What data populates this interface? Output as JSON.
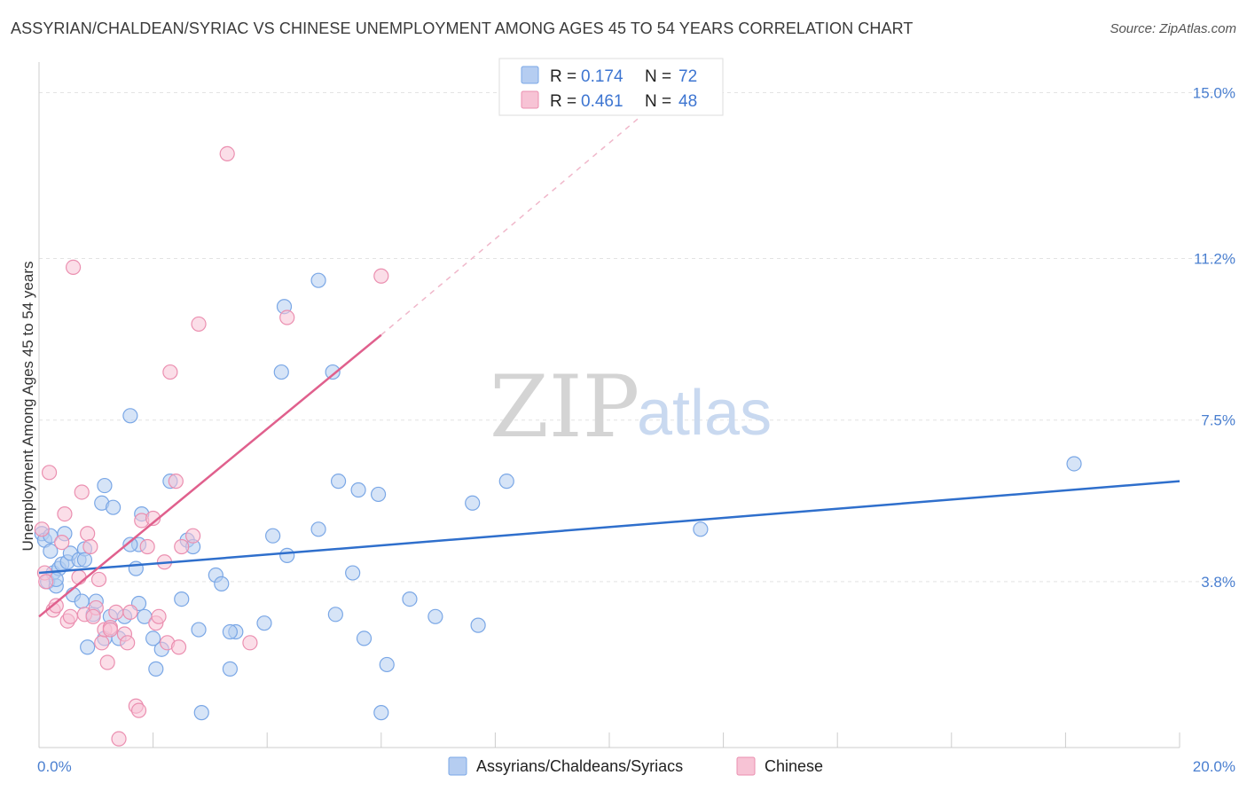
{
  "header": {
    "title": "ASSYRIAN/CHALDEAN/SYRIAC VS CHINESE UNEMPLOYMENT AMONG AGES 45 TO 54 YEARS CORRELATION CHART",
    "source": "Source: ZipAtlas.com"
  },
  "watermark": {
    "zip": "ZIP",
    "atlas": "atlas"
  },
  "legend": {
    "r_label": "R =",
    "n_label": "N =",
    "series": [
      {
        "r": "0.174",
        "n": "72"
      },
      {
        "r": "0.461",
        "n": "48"
      }
    ]
  },
  "chart_data": {
    "type": "scatter",
    "title": "ASSYRIAN/CHALDEAN/SYRIAC VS CHINESE UNEMPLOYMENT AMONG AGES 45 TO 54 YEARS CORRELATION CHART",
    "xlabel": "",
    "ylabel": "Unemployment Among Ages 45 to 54 years",
    "xlim": [
      0,
      20
    ],
    "ylim": [
      0,
      15.7
    ],
    "x_tick_labels": [
      "0.0%",
      "20.0%"
    ],
    "y_ticks": [
      3.8,
      7.5,
      11.2,
      15.0
    ],
    "y_tick_labels": [
      "3.8%",
      "7.5%",
      "11.2%",
      "15.0%"
    ],
    "grid": true,
    "legend_position": "top-center",
    "series": [
      {
        "name": "Assyrians/Chaldeans/Syriacs",
        "color": "#7aa7e6",
        "fill": "#b5cdf1",
        "trend": {
          "x": [
            0,
            20
          ],
          "y": [
            4.0,
            6.1
          ],
          "color": "#2f6fcc"
        },
        "points": [
          [
            0.05,
            4.9
          ],
          [
            0.1,
            4.75
          ],
          [
            0.15,
            3.8
          ],
          [
            0.2,
            4.5
          ],
          [
            0.25,
            4.0
          ],
          [
            0.3,
            3.7
          ],
          [
            0.35,
            4.1
          ],
          [
            0.4,
            4.2
          ],
          [
            0.45,
            4.9
          ],
          [
            0.5,
            4.25
          ],
          [
            0.55,
            4.45
          ],
          [
            0.6,
            3.5
          ],
          [
            0.7,
            4.3
          ],
          [
            0.75,
            3.35
          ],
          [
            0.8,
            4.55
          ],
          [
            0.85,
            2.3
          ],
          [
            0.95,
            3.05
          ],
          [
            1.0,
            3.35
          ],
          [
            1.1,
            5.6
          ],
          [
            1.15,
            2.5
          ],
          [
            1.25,
            3.0
          ],
          [
            1.3,
            5.5
          ],
          [
            1.4,
            2.5
          ],
          [
            1.5,
            3.0
          ],
          [
            1.6,
            7.6
          ],
          [
            1.75,
            4.65
          ],
          [
            1.8,
            5.35
          ],
          [
            1.85,
            3.0
          ],
          [
            2.0,
            2.5
          ],
          [
            2.05,
            1.8
          ],
          [
            2.15,
            2.25
          ],
          [
            2.3,
            6.1
          ],
          [
            2.5,
            3.4
          ],
          [
            2.6,
            4.75
          ],
          [
            2.7,
            4.6
          ],
          [
            2.8,
            2.7
          ],
          [
            2.85,
            0.8
          ],
          [
            3.1,
            3.95
          ],
          [
            3.2,
            3.75
          ],
          [
            3.35,
            1.8
          ],
          [
            3.45,
            2.65
          ],
          [
            3.95,
            2.85
          ],
          [
            4.1,
            4.85
          ],
          [
            4.25,
            8.6
          ],
          [
            4.3,
            10.1
          ],
          [
            4.35,
            4.4
          ],
          [
            4.9,
            10.7
          ],
          [
            5.15,
            8.6
          ],
          [
            5.2,
            3.05
          ],
          [
            5.25,
            6.1
          ],
          [
            5.6,
            5.9
          ],
          [
            5.7,
            2.5
          ],
          [
            5.95,
            5.8
          ],
          [
            6.1,
            1.9
          ],
          [
            6.5,
            3.4
          ],
          [
            6.95,
            3.0
          ],
          [
            7.7,
            2.8
          ],
          [
            7.6,
            5.6
          ],
          [
            8.2,
            6.1
          ],
          [
            11.6,
            5.0
          ],
          [
            18.15,
            6.5
          ],
          [
            0.2,
            4.85
          ],
          [
            1.7,
            4.1
          ],
          [
            1.75,
            3.3
          ],
          [
            3.35,
            2.65
          ],
          [
            4.9,
            5.0
          ],
          [
            5.5,
            4.0
          ],
          [
            6.0,
            0.8
          ],
          [
            1.15,
            6.0
          ],
          [
            0.8,
            4.3
          ],
          [
            0.3,
            3.85
          ],
          [
            1.6,
            4.65
          ]
        ]
      },
      {
        "name": "Chinese",
        "color": "#eb8fb0",
        "fill": "#f7c3d5",
        "trend": {
          "x": [
            0,
            6.0
          ],
          "y": [
            3.0,
            9.45
          ],
          "color": "#e0608d"
        },
        "trend_dashed": {
          "x": [
            6.0,
            10.5
          ],
          "y": [
            9.45,
            14.4
          ]
        },
        "points": [
          [
            0.05,
            5.0
          ],
          [
            0.1,
            4.0
          ],
          [
            0.12,
            3.8
          ],
          [
            0.18,
            6.3
          ],
          [
            0.25,
            3.15
          ],
          [
            0.3,
            3.25
          ],
          [
            0.4,
            4.7
          ],
          [
            0.45,
            5.35
          ],
          [
            0.5,
            2.9
          ],
          [
            0.55,
            3.0
          ],
          [
            0.6,
            11.0
          ],
          [
            0.7,
            3.9
          ],
          [
            0.75,
            5.85
          ],
          [
            0.8,
            3.05
          ],
          [
            0.85,
            4.9
          ],
          [
            0.9,
            4.6
          ],
          [
            1.0,
            3.2
          ],
          [
            1.05,
            3.85
          ],
          [
            1.1,
            2.4
          ],
          [
            1.15,
            2.7
          ],
          [
            1.2,
            1.95
          ],
          [
            1.25,
            2.75
          ],
          [
            1.35,
            3.1
          ],
          [
            1.4,
            0.2
          ],
          [
            1.5,
            2.6
          ],
          [
            1.55,
            2.4
          ],
          [
            1.6,
            3.1
          ],
          [
            1.7,
            0.95
          ],
          [
            1.75,
            0.85
          ],
          [
            1.8,
            5.2
          ],
          [
            1.9,
            4.6
          ],
          [
            2.0,
            5.25
          ],
          [
            2.05,
            2.85
          ],
          [
            2.1,
            3.0
          ],
          [
            2.2,
            4.25
          ],
          [
            2.25,
            2.4
          ],
          [
            2.3,
            8.6
          ],
          [
            2.4,
            6.1
          ],
          [
            2.45,
            2.3
          ],
          [
            2.5,
            4.6
          ],
          [
            2.7,
            4.85
          ],
          [
            2.8,
            9.7
          ],
          [
            3.3,
            13.6
          ],
          [
            3.7,
            2.4
          ],
          [
            4.35,
            9.85
          ],
          [
            6.0,
            10.8
          ],
          [
            0.95,
            3.0
          ],
          [
            1.25,
            2.7
          ]
        ]
      }
    ]
  },
  "bottom_legend": [
    {
      "label": "Assyrians/Chaldeans/Syriacs"
    },
    {
      "label": "Chinese"
    }
  ]
}
